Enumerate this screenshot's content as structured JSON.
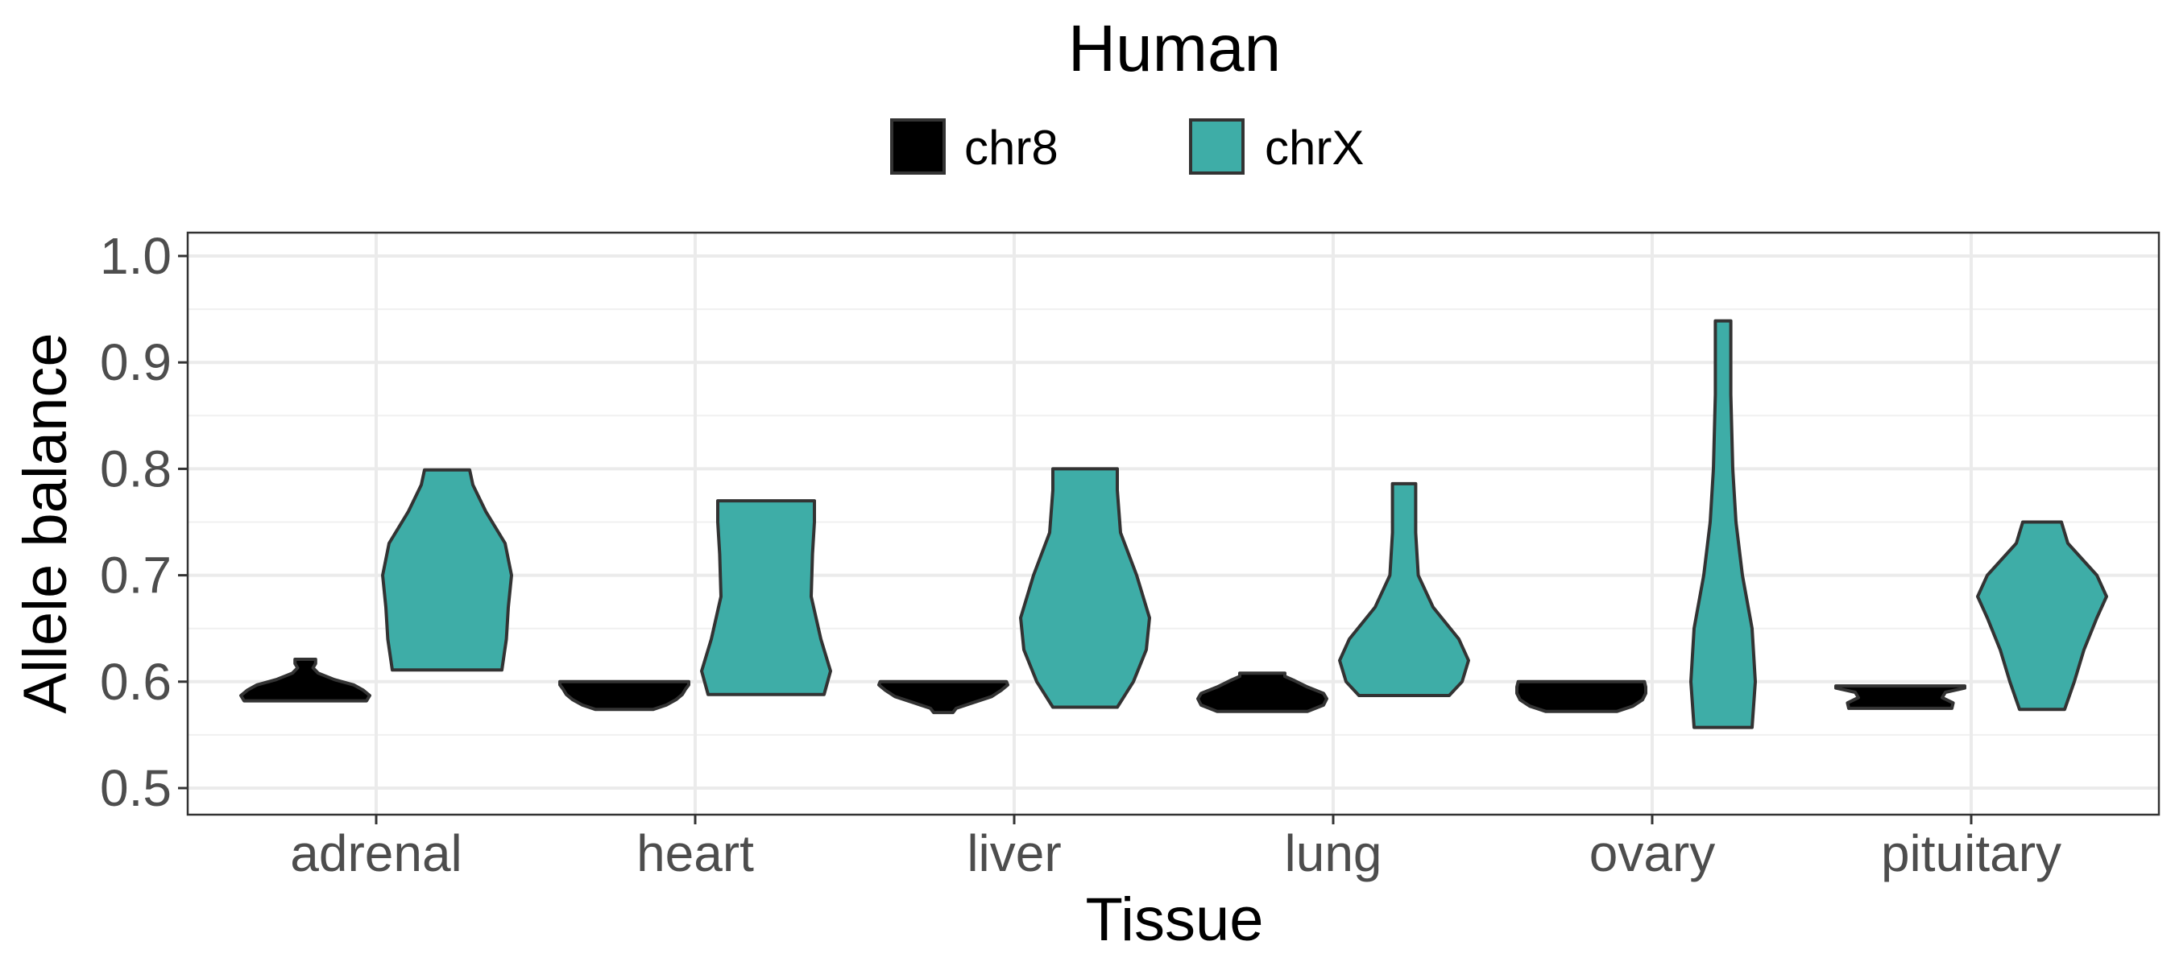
{
  "chart_data": {
    "type": "violin",
    "title": "Human",
    "xlabel": "Tissue",
    "ylabel": "Allele balance",
    "ylim": [
      0.5,
      1.0
    ],
    "yticks": [
      "0.5",
      "0.6",
      "0.7",
      "0.8",
      "0.9",
      "1.0"
    ],
    "categories": [
      "adrenal",
      "heart",
      "liver",
      "lung",
      "ovary",
      "pituitary"
    ],
    "grid": true,
    "legend_position": "top",
    "series": [
      {
        "name": "chr8",
        "color": "#000000",
        "violins": [
          {
            "ymin": 0.582,
            "ymax": 0.621,
            "profile": [
              [
                0.582,
                0.95
              ],
              [
                0.587,
                1.0
              ],
              [
                0.592,
                0.9
              ],
              [
                0.597,
                0.75
              ],
              [
                0.602,
                0.45
              ],
              [
                0.608,
                0.2
              ],
              [
                0.613,
                0.12
              ],
              [
                0.617,
                0.16
              ],
              [
                0.621,
                0.16
              ]
            ]
          },
          {
            "ymin": 0.574,
            "ymax": 0.6,
            "profile": [
              [
                0.574,
                0.45
              ],
              [
                0.578,
                0.65
              ],
              [
                0.583,
                0.8
              ],
              [
                0.588,
                0.9
              ],
              [
                0.593,
                0.95
              ],
              [
                0.597,
                1.0
              ],
              [
                0.6,
                1.0
              ]
            ]
          },
          {
            "ymin": 0.571,
            "ymax": 0.6,
            "profile": [
              [
                0.571,
                0.15
              ],
              [
                0.575,
                0.2
              ],
              [
                0.58,
                0.45
              ],
              [
                0.586,
                0.75
              ],
              [
                0.592,
                0.9
              ],
              [
                0.597,
                1.0
              ],
              [
                0.6,
                0.98
              ]
            ]
          },
          {
            "ymin": 0.572,
            "ymax": 0.608,
            "profile": [
              [
                0.572,
                0.7
              ],
              [
                0.578,
                0.95
              ],
              [
                0.584,
                1.0
              ],
              [
                0.589,
                0.95
              ],
              [
                0.595,
                0.7
              ],
              [
                0.601,
                0.5
              ],
              [
                0.605,
                0.35
              ],
              [
                0.608,
                0.35
              ]
            ]
          },
          {
            "ymin": 0.572,
            "ymax": 0.6,
            "profile": [
              [
                0.572,
                0.55
              ],
              [
                0.577,
                0.8
              ],
              [
                0.583,
                0.95
              ],
              [
                0.589,
                1.0
              ],
              [
                0.595,
                1.0
              ],
              [
                0.6,
                0.98
              ]
            ]
          },
          {
            "ymin": 0.575,
            "ymax": 0.596,
            "profile": [
              [
                0.575,
                0.8
              ],
              [
                0.58,
                0.82
              ],
              [
                0.585,
                0.65
              ],
              [
                0.59,
                0.7
              ],
              [
                0.594,
                1.0
              ],
              [
                0.596,
                1.0
              ]
            ]
          }
        ]
      },
      {
        "name": "chrX",
        "color": "#3EADA7",
        "violins": [
          {
            "ymin": 0.611,
            "ymax": 0.799,
            "profile": [
              [
                0.611,
                0.85
              ],
              [
                0.64,
                0.92
              ],
              [
                0.67,
                0.95
              ],
              [
                0.7,
                1.0
              ],
              [
                0.73,
                0.9
              ],
              [
                0.76,
                0.6
              ],
              [
                0.785,
                0.4
              ],
              [
                0.799,
                0.35
              ]
            ]
          },
          {
            "ymin": 0.588,
            "ymax": 0.77,
            "profile": [
              [
                0.588,
                0.9
              ],
              [
                0.61,
                1.0
              ],
              [
                0.64,
                0.85
              ],
              [
                0.68,
                0.7
              ],
              [
                0.72,
                0.72
              ],
              [
                0.75,
                0.75
              ],
              [
                0.77,
                0.75
              ]
            ]
          },
          {
            "ymin": 0.576,
            "ymax": 0.8,
            "profile": [
              [
                0.576,
                0.5
              ],
              [
                0.6,
                0.75
              ],
              [
                0.63,
                0.95
              ],
              [
                0.66,
                1.0
              ],
              [
                0.7,
                0.8
              ],
              [
                0.74,
                0.55
              ],
              [
                0.78,
                0.5
              ],
              [
                0.8,
                0.5
              ]
            ]
          },
          {
            "ymin": 0.587,
            "ymax": 0.786,
            "profile": [
              [
                0.587,
                0.7
              ],
              [
                0.6,
                0.9
              ],
              [
                0.62,
                1.0
              ],
              [
                0.64,
                0.85
              ],
              [
                0.67,
                0.45
              ],
              [
                0.7,
                0.22
              ],
              [
                0.74,
                0.18
              ],
              [
                0.786,
                0.18
              ]
            ]
          },
          {
            "ymin": 0.557,
            "ymax": 0.939,
            "profile": [
              [
                0.557,
                0.45
              ],
              [
                0.6,
                0.5
              ],
              [
                0.65,
                0.45
              ],
              [
                0.7,
                0.3
              ],
              [
                0.75,
                0.2
              ],
              [
                0.8,
                0.15
              ],
              [
                0.87,
                0.12
              ],
              [
                0.939,
                0.12
              ]
            ]
          },
          {
            "ymin": 0.574,
            "ymax": 0.75,
            "profile": [
              [
                0.574,
                0.35
              ],
              [
                0.6,
                0.5
              ],
              [
                0.63,
                0.65
              ],
              [
                0.66,
                0.85
              ],
              [
                0.68,
                1.0
              ],
              [
                0.7,
                0.85
              ],
              [
                0.73,
                0.4
              ],
              [
                0.75,
                0.3
              ]
            ]
          }
        ]
      }
    ]
  }
}
